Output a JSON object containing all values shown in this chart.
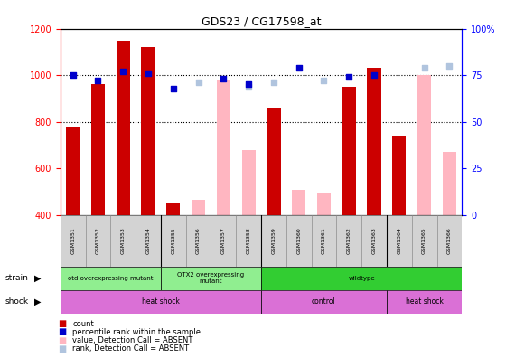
{
  "title": "GDS23 / CG17598_at",
  "samples": [
    "GSM1351",
    "GSM1352",
    "GSM1353",
    "GSM1354",
    "GSM1355",
    "GSM1356",
    "GSM1357",
    "GSM1358",
    "GSM1359",
    "GSM1360",
    "GSM1361",
    "GSM1362",
    "GSM1363",
    "GSM1364",
    "GSM1365",
    "GSM1366"
  ],
  "count_values": [
    780,
    960,
    1150,
    1120,
    450,
    null,
    null,
    null,
    860,
    null,
    null,
    950,
    1030,
    740,
    null,
    null
  ],
  "percentile_pct": [
    75,
    72,
    77,
    76,
    68,
    null,
    73,
    70,
    null,
    79,
    null,
    74,
    75,
    null,
    null,
    null
  ],
  "absent_value": [
    null,
    null,
    null,
    null,
    null,
    465,
    980,
    680,
    null,
    507,
    497,
    null,
    null,
    null,
    1000,
    672
  ],
  "absent_rank_pct": [
    null,
    null,
    null,
    null,
    null,
    71,
    null,
    69,
    71,
    null,
    72,
    null,
    null,
    null,
    79,
    80
  ],
  "ylim": [
    400,
    1200
  ],
  "y2lim": [
    0,
    100
  ],
  "yticks": [
    400,
    600,
    800,
    1000,
    1200
  ],
  "y2ticks": [
    0,
    25,
    50,
    75,
    100
  ],
  "count_color": "#cc0000",
  "percentile_color": "#0000cc",
  "absent_value_color": "#ffb6c1",
  "absent_rank_color": "#b0c4de",
  "bar_width": 0.55,
  "dot_size": 22,
  "strain_groups": [
    {
      "label": "otd overexpressing mutant",
      "start": 0,
      "end": 4,
      "color": "#90ee90"
    },
    {
      "label": "OTX2 overexpressing\nmutant",
      "start": 4,
      "end": 8,
      "color": "#90ee90"
    },
    {
      "label": "wildtype",
      "start": 8,
      "end": 16,
      "color": "#32cd32"
    }
  ],
  "shock_groups": [
    {
      "label": "heat shock",
      "start": 0,
      "end": 8,
      "color": "#da70d6"
    },
    {
      "label": "control",
      "start": 8,
      "end": 13,
      "color": "#da70d6"
    },
    {
      "label": "heat shock",
      "start": 13,
      "end": 16,
      "color": "#da70d6"
    }
  ]
}
